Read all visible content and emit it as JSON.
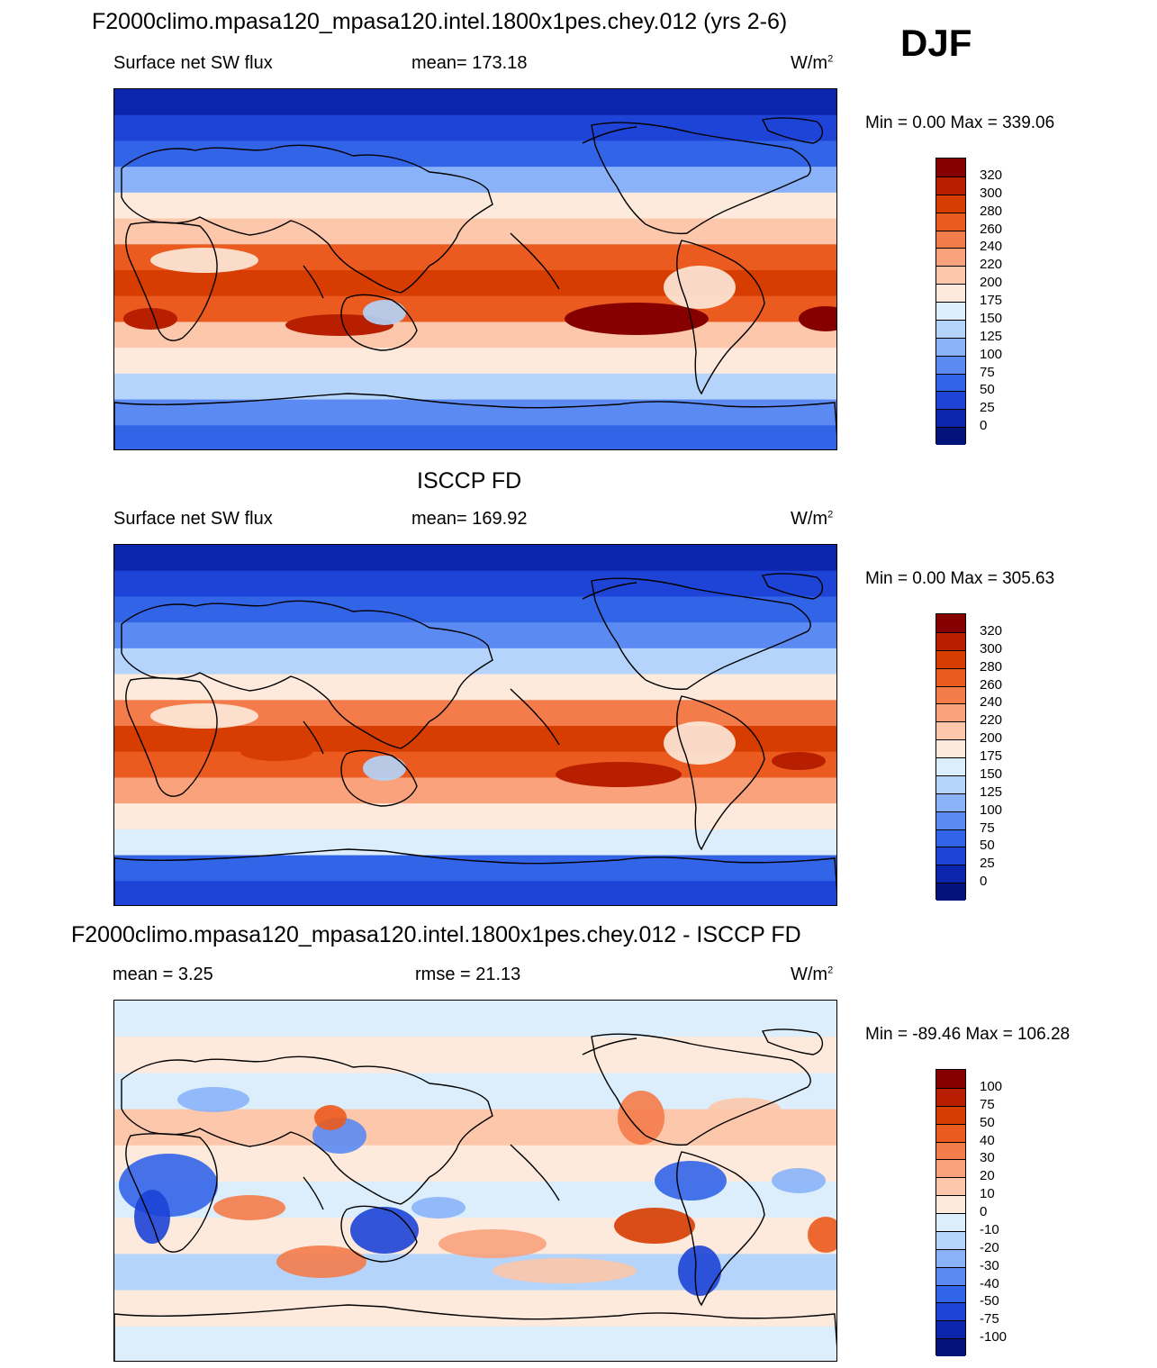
{
  "season": "DJF",
  "panels": [
    {
      "title": "F2000climo.mpasa120_mpasa120.intel.1800x1pes.chey.012 (yrs 2-6)",
      "left_label": "Surface net SW flux",
      "center_label": "mean= 173.18",
      "unit": "W/m",
      "unit_exp": "2",
      "minmax": "Min =    0.00 Max = 339.06",
      "colorbar_labels": [
        "320",
        "300",
        "280",
        "260",
        "240",
        "220",
        "200",
        "175",
        "150",
        "125",
        "100",
        "75",
        "50",
        "25",
        "0"
      ],
      "colorbar_colors": [
        "#870000",
        "#b81e00",
        "#d73c00",
        "#eb5a1e",
        "#f47b4a",
        "#f9a27c",
        "#fcc7aa",
        "#fdeadc",
        "#dceefc",
        "#b4d4fb",
        "#8ab2f8",
        "#5b8af2",
        "#3264e8",
        "#1d44d6",
        "#0b26ad",
        "#03137c"
      ],
      "map_kind": "sw"
    },
    {
      "title": "ISCCP FD",
      "left_label": "Surface net SW flux",
      "center_label": "mean= 169.92",
      "unit": "W/m",
      "unit_exp": "2",
      "minmax": "Min =    0.00 Max = 305.63",
      "colorbar_labels": [
        "320",
        "300",
        "280",
        "260",
        "240",
        "220",
        "200",
        "175",
        "150",
        "125",
        "100",
        "75",
        "50",
        "25",
        "0"
      ],
      "colorbar_colors": [
        "#870000",
        "#b81e00",
        "#d73c00",
        "#eb5a1e",
        "#f47b4a",
        "#f9a27c",
        "#fcc7aa",
        "#fdeadc",
        "#dceefc",
        "#b4d4fb",
        "#8ab2f8",
        "#5b8af2",
        "#3264e8",
        "#1d44d6",
        "#0b26ad",
        "#03137c"
      ],
      "map_kind": "obs"
    },
    {
      "title": "F2000climo.mpasa120_mpasa120.intel.1800x1pes.chey.012 - ISCCP FD",
      "left_label": "mean =   3.25",
      "center_label": "rmse =  21.13",
      "unit": "W/m",
      "unit_exp": "2",
      "minmax": "Min = -89.46 Max = 106.28",
      "colorbar_labels": [
        "100",
        "75",
        "50",
        "40",
        "30",
        "20",
        "10",
        "0",
        "-10",
        "-20",
        "-30",
        "-40",
        "-50",
        "-75",
        "-100"
      ],
      "colorbar_colors": [
        "#870000",
        "#b81e00",
        "#d73c00",
        "#eb5a1e",
        "#f47b4a",
        "#f9a27c",
        "#fcc7aa",
        "#fdeadc",
        "#dceefc",
        "#b4d4fb",
        "#8ab2f8",
        "#5b8af2",
        "#3264e8",
        "#1d44d6",
        "#0b26ad",
        "#03137c"
      ],
      "map_kind": "diff"
    }
  ]
}
